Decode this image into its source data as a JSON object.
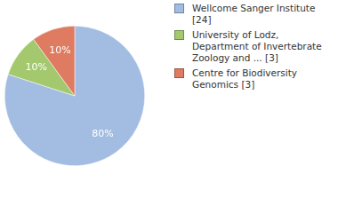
{
  "chart_data": {
    "type": "pie",
    "categories": [
      "Wellcome Sanger Institute [24]",
      "University of Lodz, Department of Invertebrate Zoology and ... [3]",
      "Centre for Biodiversity Genomics [3]"
    ],
    "values": [
      80,
      10,
      10
    ],
    "value_labels": [
      "80%",
      "10%",
      "10%"
    ],
    "colors": [
      "#a3bde2",
      "#a3c86e",
      "#de7b60"
    ],
    "data_labels": true,
    "legend": "right"
  }
}
